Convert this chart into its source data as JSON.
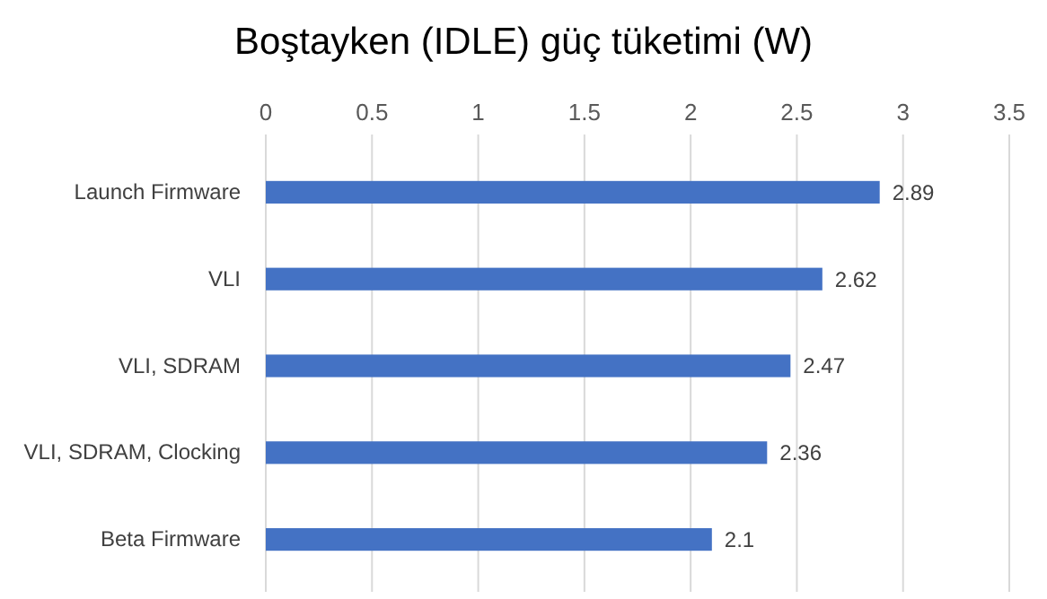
{
  "chart_data": {
    "type": "bar",
    "orientation": "horizontal",
    "title": "Boştayken (IDLE) güç tüketimi (W)",
    "categories": [
      "Launch Firmware",
      "VLI",
      "VLI, SDRAM",
      "VLI, SDRAM, Clocking",
      "Beta Firmware"
    ],
    "values": [
      2.89,
      2.62,
      2.47,
      2.36,
      2.1
    ],
    "color": "#4472c4",
    "xlim": [
      0,
      3.5
    ],
    "xticks": [
      0,
      0.5,
      1,
      1.5,
      2,
      2.5,
      3,
      3.5
    ],
    "grid": "x",
    "data_labels": true
  }
}
